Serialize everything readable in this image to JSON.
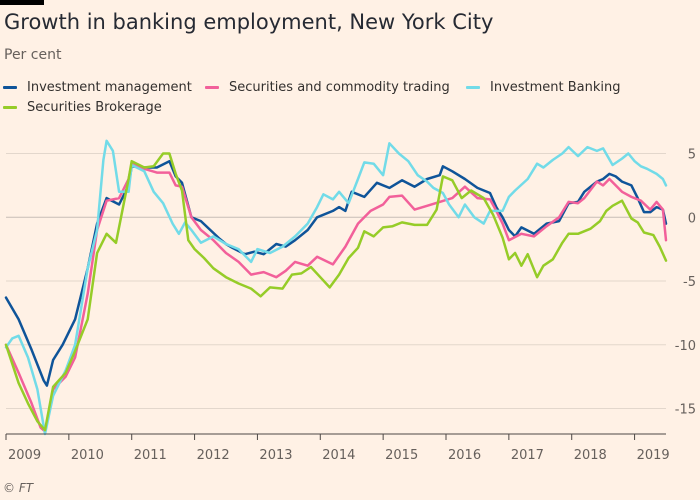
{
  "title": "Growth in banking employment, New York City",
  "subtitle": "Per cent",
  "source": "© FT",
  "chart_data": {
    "type": "line",
    "xlim": [
      2009,
      2019.5
    ],
    "ylim": [
      -17,
      7
    ],
    "y_ticks": [
      5,
      0,
      -5,
      -10,
      -15
    ],
    "y_tick_labels": [
      "5",
      "0",
      "-5",
      "-10",
      "-15"
    ],
    "x_ticks": [
      2009,
      2010,
      2011,
      2012,
      2013,
      2014,
      2015,
      2016,
      2017,
      2018,
      2019
    ],
    "x_tick_labels": [
      "2009",
      "2010",
      "2011",
      "2012",
      "2013",
      "2014",
      "2015",
      "2016",
      "2017",
      "2018",
      "2019"
    ],
    "grid": "horizontal",
    "legend_position": "top",
    "series": [
      {
        "name": "Investment management",
        "color": "#0f5499",
        "points": [
          [
            2009.0,
            -6.3
          ],
          [
            2009.2,
            -8
          ],
          [
            2009.4,
            -10.3
          ],
          [
            2009.6,
            -12.8
          ],
          [
            2009.65,
            -13.2
          ],
          [
            2009.75,
            -11.2
          ],
          [
            2009.9,
            -10
          ],
          [
            2010.1,
            -8
          ],
          [
            2010.3,
            -4
          ],
          [
            2010.45,
            -0.5
          ],
          [
            2010.6,
            1.5
          ],
          [
            2010.8,
            1
          ],
          [
            2010.95,
            2.5
          ],
          [
            2011.0,
            4
          ],
          [
            2011.2,
            3.9
          ],
          [
            2011.4,
            3.9
          ],
          [
            2011.6,
            4.4
          ],
          [
            2011.7,
            3.2
          ],
          [
            2011.8,
            2.7
          ],
          [
            2011.95,
            0
          ],
          [
            2012.1,
            -0.3
          ],
          [
            2012.25,
            -1
          ],
          [
            2012.4,
            -1.7
          ],
          [
            2012.5,
            -2.1
          ],
          [
            2012.6,
            -2.4
          ],
          [
            2012.8,
            -2.9
          ],
          [
            2012.95,
            -2.7
          ],
          [
            2013.1,
            -2.9
          ],
          [
            2013.3,
            -2.1
          ],
          [
            2013.45,
            -2.3
          ],
          [
            2013.6,
            -1.8
          ],
          [
            2013.8,
            -1
          ],
          [
            2013.95,
            0
          ],
          [
            2014.2,
            0.5
          ],
          [
            2014.3,
            0.8
          ],
          [
            2014.4,
            0.5
          ],
          [
            2014.5,
            2
          ],
          [
            2014.7,
            1.6
          ],
          [
            2014.9,
            2.7
          ],
          [
            2015.1,
            2.3
          ],
          [
            2015.3,
            2.9
          ],
          [
            2015.5,
            2.4
          ],
          [
            2015.7,
            3
          ],
          [
            2015.9,
            3.3
          ],
          [
            2015.95,
            4
          ],
          [
            2016.1,
            3.6
          ],
          [
            2016.3,
            3
          ],
          [
            2016.5,
            2.3
          ],
          [
            2016.7,
            1.9
          ],
          [
            2016.8,
            0.8
          ],
          [
            2016.9,
            0
          ],
          [
            2017.0,
            -1
          ],
          [
            2017.1,
            -1.5
          ],
          [
            2017.2,
            -0.8
          ],
          [
            2017.4,
            -1.3
          ],
          [
            2017.6,
            -0.5
          ],
          [
            2017.8,
            -0.3
          ],
          [
            2017.95,
            1.1
          ],
          [
            2018.1,
            1.2
          ],
          [
            2018.2,
            2
          ],
          [
            2018.4,
            2.8
          ],
          [
            2018.5,
            3
          ],
          [
            2018.6,
            3.4
          ],
          [
            2018.7,
            3.2
          ],
          [
            2018.8,
            2.8
          ],
          [
            2018.95,
            2.5
          ],
          [
            2019.05,
            1.5
          ],
          [
            2019.15,
            0.4
          ],
          [
            2019.25,
            0.4
          ],
          [
            2019.35,
            0.8
          ],
          [
            2019.45,
            0.6
          ],
          [
            2019.5,
            -0.5
          ]
        ]
      },
      {
        "name": "Securities and commodity trading",
        "color": "#f2609a",
        "points": [
          [
            2009.0,
            -10
          ],
          [
            2009.2,
            -12.2
          ],
          [
            2009.4,
            -14.5
          ],
          [
            2009.55,
            -16.5
          ],
          [
            2009.62,
            -16.8
          ],
          [
            2009.75,
            -13.5
          ],
          [
            2009.95,
            -12.5
          ],
          [
            2010.1,
            -11
          ],
          [
            2010.3,
            -6
          ],
          [
            2010.45,
            -1
          ],
          [
            2010.6,
            1.3
          ],
          [
            2010.8,
            1.5
          ],
          [
            2010.95,
            3
          ],
          [
            2011.0,
            4.2
          ],
          [
            2011.2,
            3.8
          ],
          [
            2011.4,
            3.5
          ],
          [
            2011.6,
            3.5
          ],
          [
            2011.7,
            2.5
          ],
          [
            2011.8,
            2.4
          ],
          [
            2011.95,
            0
          ],
          [
            2012.1,
            -1
          ],
          [
            2012.3,
            -1.8
          ],
          [
            2012.5,
            -2.8
          ],
          [
            2012.7,
            -3.5
          ],
          [
            2012.9,
            -4.5
          ],
          [
            2013.1,
            -4.3
          ],
          [
            2013.3,
            -4.7
          ],
          [
            2013.45,
            -4.2
          ],
          [
            2013.6,
            -3.5
          ],
          [
            2013.8,
            -3.8
          ],
          [
            2013.95,
            -3.1
          ],
          [
            2014.2,
            -3.7
          ],
          [
            2014.4,
            -2.3
          ],
          [
            2014.6,
            -0.5
          ],
          [
            2014.8,
            0.5
          ],
          [
            2015.0,
            1
          ],
          [
            2015.1,
            1.6
          ],
          [
            2015.3,
            1.7
          ],
          [
            2015.5,
            0.6
          ],
          [
            2015.7,
            0.9
          ],
          [
            2015.9,
            1.2
          ],
          [
            2016.1,
            1.5
          ],
          [
            2016.3,
            2.4
          ],
          [
            2016.5,
            1.5
          ],
          [
            2016.7,
            1.4
          ],
          [
            2016.8,
            0.5
          ],
          [
            2016.9,
            -0.5
          ],
          [
            2017.0,
            -1.8
          ],
          [
            2017.2,
            -1.3
          ],
          [
            2017.4,
            -1.5
          ],
          [
            2017.6,
            -0.7
          ],
          [
            2017.8,
            0
          ],
          [
            2017.95,
            1.2
          ],
          [
            2018.1,
            1.1
          ],
          [
            2018.2,
            1.5
          ],
          [
            2018.4,
            2.8
          ],
          [
            2018.5,
            2.5
          ],
          [
            2018.6,
            3
          ],
          [
            2018.8,
            2
          ],
          [
            2018.95,
            1.6
          ],
          [
            2019.1,
            1.3
          ],
          [
            2019.25,
            0.6
          ],
          [
            2019.35,
            1.2
          ],
          [
            2019.45,
            0.6
          ],
          [
            2019.5,
            -1.8
          ]
        ]
      },
      {
        "name": "Investment Banking",
        "color": "#72dbe8",
        "points": [
          [
            2009.0,
            -10.2
          ],
          [
            2009.1,
            -9.5
          ],
          [
            2009.2,
            -9.3
          ],
          [
            2009.35,
            -11
          ],
          [
            2009.5,
            -13.5
          ],
          [
            2009.62,
            -17
          ],
          [
            2009.75,
            -14
          ],
          [
            2009.95,
            -12
          ],
          [
            2010.1,
            -10
          ],
          [
            2010.3,
            -4
          ],
          [
            2010.45,
            -1
          ],
          [
            2010.55,
            4.5
          ],
          [
            2010.6,
            6
          ],
          [
            2010.7,
            5.2
          ],
          [
            2010.8,
            2
          ],
          [
            2010.95,
            2
          ],
          [
            2011.0,
            4.1
          ],
          [
            2011.2,
            3.6
          ],
          [
            2011.35,
            2
          ],
          [
            2011.5,
            1.1
          ],
          [
            2011.65,
            -0.5
          ],
          [
            2011.75,
            -1.3
          ],
          [
            2011.85,
            -0.4
          ],
          [
            2011.95,
            -1
          ],
          [
            2012.1,
            -2
          ],
          [
            2012.3,
            -1.5
          ],
          [
            2012.5,
            -2.1
          ],
          [
            2012.7,
            -2.5
          ],
          [
            2012.9,
            -3.5
          ],
          [
            2013.0,
            -2.5
          ],
          [
            2013.2,
            -2.8
          ],
          [
            2013.4,
            -2.3
          ],
          [
            2013.6,
            -1.5
          ],
          [
            2013.8,
            -0.5
          ],
          [
            2013.95,
            0.8
          ],
          [
            2014.05,
            1.8
          ],
          [
            2014.2,
            1.4
          ],
          [
            2014.3,
            2
          ],
          [
            2014.45,
            1.1
          ],
          [
            2014.6,
            3
          ],
          [
            2014.7,
            4.3
          ],
          [
            2014.85,
            4.2
          ],
          [
            2015.0,
            3.3
          ],
          [
            2015.1,
            5.8
          ],
          [
            2015.25,
            5
          ],
          [
            2015.4,
            4.4
          ],
          [
            2015.55,
            3.3
          ],
          [
            2015.7,
            2.8
          ],
          [
            2015.8,
            2.3
          ],
          [
            2015.95,
            1.9
          ],
          [
            2016.05,
            1
          ],
          [
            2016.2,
            0
          ],
          [
            2016.3,
            1
          ],
          [
            2016.45,
            0
          ],
          [
            2016.6,
            -0.5
          ],
          [
            2016.7,
            0.5
          ],
          [
            2016.9,
            0.5
          ],
          [
            2017.0,
            1.6
          ],
          [
            2017.1,
            2.1
          ],
          [
            2017.3,
            3
          ],
          [
            2017.45,
            4.2
          ],
          [
            2017.55,
            3.9
          ],
          [
            2017.7,
            4.5
          ],
          [
            2017.85,
            5
          ],
          [
            2017.95,
            5.5
          ],
          [
            2018.1,
            4.8
          ],
          [
            2018.25,
            5.5
          ],
          [
            2018.4,
            5.2
          ],
          [
            2018.5,
            5.4
          ],
          [
            2018.65,
            4.1
          ],
          [
            2018.8,
            4.6
          ],
          [
            2018.9,
            5
          ],
          [
            2019.0,
            4.4
          ],
          [
            2019.1,
            4
          ],
          [
            2019.2,
            3.8
          ],
          [
            2019.35,
            3.4
          ],
          [
            2019.45,
            3
          ],
          [
            2019.5,
            2.5
          ]
        ]
      },
      {
        "name": "Securities Brokerage",
        "color": "#96cc28",
        "points": [
          [
            2009.0,
            -10
          ],
          [
            2009.2,
            -13
          ],
          [
            2009.35,
            -14.6
          ],
          [
            2009.5,
            -16
          ],
          [
            2009.62,
            -16.7
          ],
          [
            2009.75,
            -13.3
          ],
          [
            2009.95,
            -12.2
          ],
          [
            2010.1,
            -10.5
          ],
          [
            2010.3,
            -8
          ],
          [
            2010.45,
            -2.8
          ],
          [
            2010.6,
            -1.3
          ],
          [
            2010.75,
            -2
          ],
          [
            2010.85,
            0.5
          ],
          [
            2010.95,
            3
          ],
          [
            2011.0,
            4.4
          ],
          [
            2011.2,
            3.9
          ],
          [
            2011.35,
            4
          ],
          [
            2011.5,
            5
          ],
          [
            2011.6,
            5
          ],
          [
            2011.7,
            3.4
          ],
          [
            2011.8,
            2.1
          ],
          [
            2011.9,
            -1.8
          ],
          [
            2012.0,
            -2.5
          ],
          [
            2012.15,
            -3.2
          ],
          [
            2012.3,
            -4
          ],
          [
            2012.5,
            -4.7
          ],
          [
            2012.7,
            -5.2
          ],
          [
            2012.9,
            -5.6
          ],
          [
            2013.05,
            -6.2
          ],
          [
            2013.2,
            -5.5
          ],
          [
            2013.4,
            -5.6
          ],
          [
            2013.55,
            -4.5
          ],
          [
            2013.7,
            -4.4
          ],
          [
            2013.85,
            -3.9
          ],
          [
            2014.0,
            -4.7
          ],
          [
            2014.15,
            -5.5
          ],
          [
            2014.3,
            -4.5
          ],
          [
            2014.45,
            -3.2
          ],
          [
            2014.6,
            -2.4
          ],
          [
            2014.7,
            -1.1
          ],
          [
            2014.85,
            -1.5
          ],
          [
            2015.0,
            -0.8
          ],
          [
            2015.15,
            -0.7
          ],
          [
            2015.3,
            -0.4
          ],
          [
            2015.5,
            -0.6
          ],
          [
            2015.7,
            -0.6
          ],
          [
            2015.85,
            0.6
          ],
          [
            2015.95,
            3.2
          ],
          [
            2016.1,
            2.9
          ],
          [
            2016.25,
            1.5
          ],
          [
            2016.4,
            2.1
          ],
          [
            2016.6,
            1.5
          ],
          [
            2016.75,
            0.2
          ],
          [
            2016.9,
            -1.6
          ],
          [
            2017.0,
            -3.3
          ],
          [
            2017.1,
            -2.8
          ],
          [
            2017.2,
            -3.8
          ],
          [
            2017.3,
            -2.9
          ],
          [
            2017.45,
            -4.7
          ],
          [
            2017.55,
            -3.8
          ],
          [
            2017.7,
            -3.3
          ],
          [
            2017.85,
            -2
          ],
          [
            2017.95,
            -1.3
          ],
          [
            2018.1,
            -1.3
          ],
          [
            2018.3,
            -0.9
          ],
          [
            2018.45,
            -0.3
          ],
          [
            2018.55,
            0.5
          ],
          [
            2018.65,
            0.9
          ],
          [
            2018.8,
            1.3
          ],
          [
            2018.95,
            -0.1
          ],
          [
            2019.05,
            -0.4
          ],
          [
            2019.15,
            -1.2
          ],
          [
            2019.3,
            -1.4
          ],
          [
            2019.4,
            -2.3
          ],
          [
            2019.5,
            -3.4
          ]
        ]
      }
    ]
  }
}
